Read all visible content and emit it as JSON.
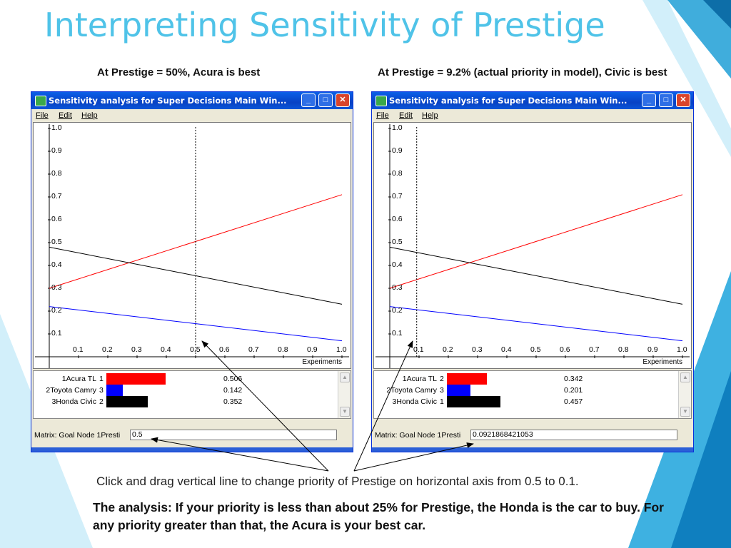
{
  "title": "Interpreting Sensitivity of Prestige",
  "caption_left": "At Prestige = 50%, Acura is best",
  "caption_right": "At Prestige = 9.2% (actual priority in model), Civic is best",
  "colors": {
    "title": "#4fc3e8",
    "acura": "#ff0000",
    "camry": "#0000ff",
    "civic": "#000000",
    "accent_teal": "#1aa7d9"
  },
  "window": {
    "title": "Sensitivity analysis for Super Decisions Main Win...",
    "menu": [
      "File",
      "Edit",
      "Help"
    ],
    "x_axis_label": "Experiments",
    "status_label": "Matrix: Goal Node 1Presti",
    "y_ticks": [
      "1.0",
      "0.9",
      "0.8",
      "0.7",
      "0.6",
      "0.5",
      "0.4",
      "0.3",
      "0.2",
      "0.1"
    ],
    "x_ticks": [
      "0.1",
      "0.2",
      "0.3",
      "0.4",
      "0.5",
      "0.6",
      "0.7",
      "0.8",
      "0.9",
      "1.0"
    ]
  },
  "chart_data": [
    {
      "type": "line",
      "xlim": [
        0,
        1.0
      ],
      "ylim": [
        0,
        1.0
      ],
      "marker_x": 0.5,
      "series": [
        {
          "name": "1Acura TL",
          "x": [
            0,
            1.0
          ],
          "y": [
            0.3,
            0.71
          ],
          "color": "#ff0000"
        },
        {
          "name": "2Toyota Camry",
          "x": [
            0,
            1.0
          ],
          "y": [
            0.22,
            0.07
          ],
          "color": "#0000ff"
        },
        {
          "name": "3Honda Civic",
          "x": [
            0,
            1.0
          ],
          "y": [
            0.48,
            0.23
          ],
          "color": "#000000"
        }
      ],
      "legend": [
        {
          "name": "1Acura TL",
          "rank": "1",
          "value": "0.506",
          "fraction": 0.506,
          "color": "#ff0000"
        },
        {
          "name": "2Toyota Camry",
          "rank": "3",
          "value": "0.142",
          "fraction": 0.142,
          "color": "#0000ff"
        },
        {
          "name": "3Honda Civic",
          "rank": "2",
          "value": "0.352",
          "fraction": 0.352,
          "color": "#000000"
        }
      ],
      "status_value": "0.5"
    },
    {
      "type": "line",
      "xlim": [
        0,
        1.0
      ],
      "ylim": [
        0,
        1.0
      ],
      "marker_x": 0.092,
      "series": [
        {
          "name": "1Acura TL",
          "x": [
            0,
            1.0
          ],
          "y": [
            0.3,
            0.71
          ],
          "color": "#ff0000"
        },
        {
          "name": "2Toyota Camry",
          "x": [
            0,
            1.0
          ],
          "y": [
            0.22,
            0.07
          ],
          "color": "#0000ff"
        },
        {
          "name": "3Honda Civic",
          "x": [
            0,
            1.0
          ],
          "y": [
            0.48,
            0.23
          ],
          "color": "#000000"
        }
      ],
      "legend": [
        {
          "name": "1Acura TL",
          "rank": "2",
          "value": "0.342",
          "fraction": 0.342,
          "color": "#ff0000"
        },
        {
          "name": "2Toyota Camry",
          "rank": "3",
          "value": "0.201",
          "fraction": 0.201,
          "color": "#0000ff"
        },
        {
          "name": "3Honda Civic",
          "rank": "1",
          "value": "0.457",
          "fraction": 0.457,
          "color": "#000000"
        }
      ],
      "status_value": "0.0921868421053"
    }
  ],
  "note_drag": "Click and drag vertical line to change priority of Prestige on horizontal axis from 0.5 to 0.1.",
  "note_analysis": "The analysis: If your priority is less than about 25% for Prestige, the Honda is the car to buy.  For any priority greater than that, the Acura is your best car."
}
